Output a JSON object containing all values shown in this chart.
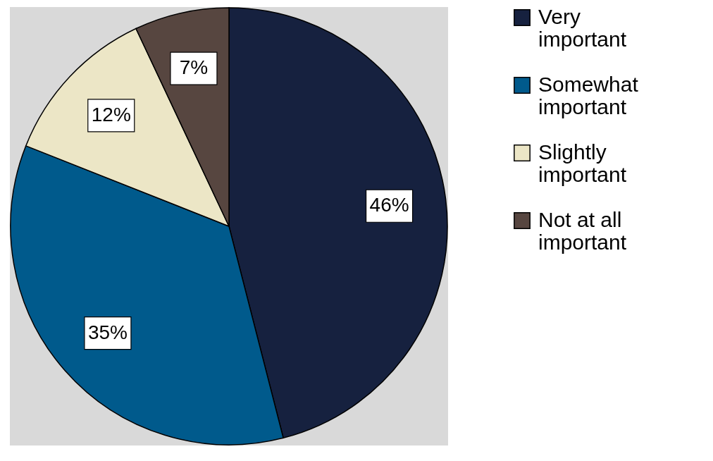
{
  "chart_data": {
    "type": "pie",
    "categories": [
      "Very important",
      "Somewhat important",
      "Slightly important",
      "Not at all important"
    ],
    "values": [
      46,
      35,
      12,
      7
    ],
    "colors": [
      "#16213f",
      "#005a8c",
      "#ece6c6",
      "#574640"
    ],
    "value_labels": [
      "46%",
      "35%",
      "12%",
      "7%"
    ],
    "legend": "right"
  }
}
